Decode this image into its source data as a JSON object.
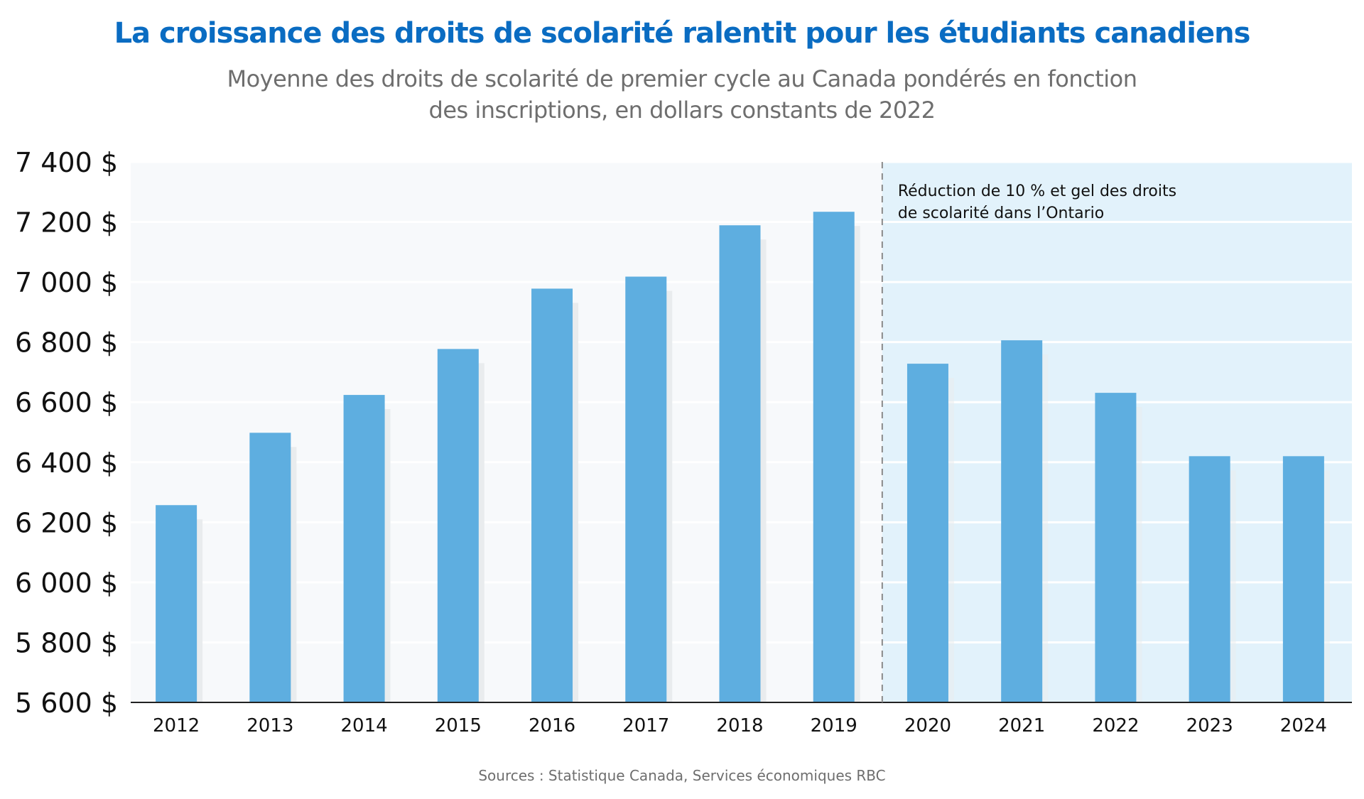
{
  "chart_data": {
    "type": "bar",
    "title": "La croissance des droits de scolarité ralentit pour les étudiants canadiens",
    "subtitle_lines": [
      "Moyenne des droits de scolarité de premier cycle au Canada pondérés en fonction",
      "des inscriptions, en dollars constants de 2022"
    ],
    "xlabel": "",
    "ylabel": "",
    "ylim": [
      5600,
      7400
    ],
    "yticks": [
      5600,
      5800,
      6000,
      6200,
      6400,
      6600,
      6800,
      7000,
      7200,
      7400
    ],
    "ytick_labels": [
      "5 600 $",
      "5 800 $",
      "6 000 $",
      "6 200 $",
      "6 400 $",
      "6 600 $",
      "6 800 $",
      "7 000 $",
      "7 200 $",
      "7 400 $"
    ],
    "categories": [
      "2012",
      "2013",
      "2014",
      "2015",
      "2016",
      "2017",
      "2018",
      "2019",
      "2020",
      "2021",
      "2022",
      "2023",
      "2024"
    ],
    "values": [
      6257,
      6498,
      6624,
      6777,
      6978,
      7018,
      7189,
      7234,
      6728,
      6806,
      6631,
      6420,
      6420
    ],
    "grid": true,
    "highlight_region": {
      "from_category": "2020",
      "to_category": "2024",
      "annotation_lines": [
        "Réduction de 10 % et gel des droits",
        "de scolarité dans l’Ontario"
      ]
    },
    "source": "Sources : Statistique Canada, Services économiques RBC",
    "colors": {
      "bar": "#5eaee0",
      "bar_shadow": "#e9ecee",
      "plot_bg": "#f7f9fb",
      "highlight_bg": "#e2f2fb",
      "title": "#0a6cc2",
      "subtitle": "#6e6e6e"
    }
  }
}
